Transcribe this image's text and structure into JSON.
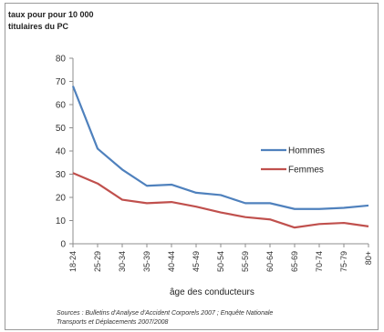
{
  "chart_data": {
    "type": "line",
    "title": "",
    "ylabel_lines": [
      "taux pour pour 10 000",
      "titulaires du PC"
    ],
    "xlabel": "âge des conducteurs",
    "categories": [
      "18-24",
      "25-29",
      "30-34",
      "35-39",
      "40-44",
      "45-49",
      "50-54",
      "55-59",
      "60-64",
      "65-69",
      "70-74",
      "75-79",
      "80+"
    ],
    "ylim": [
      0,
      80
    ],
    "yticks": [
      0,
      10,
      20,
      30,
      40,
      50,
      60,
      70,
      80
    ],
    "grid": false,
    "legend_position": "right",
    "series": [
      {
        "name": "Hommes",
        "color": "#4f81bd",
        "values": [
          68,
          41,
          32,
          25,
          25.5,
          22,
          21,
          17.5,
          17.5,
          15,
          15,
          15.5,
          16.5
        ]
      },
      {
        "name": "Femmes",
        "color": "#c0504d",
        "values": [
          30.5,
          26,
          19,
          17.5,
          18,
          16,
          13.5,
          11.5,
          10.5,
          7,
          8.5,
          9,
          7.5
        ]
      }
    ]
  },
  "source_lines": [
    "Sources :  Bulletins d'Analyse d'Accident Corporels 2007 ; Enquête Nationale",
    "Transports et Déplacements 2007/2008"
  ]
}
